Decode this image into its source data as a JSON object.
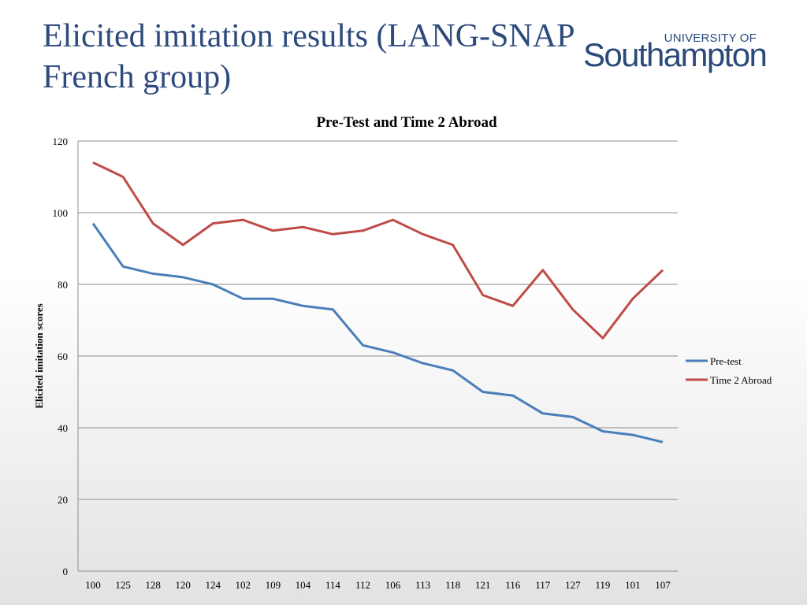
{
  "slide": {
    "title": "Elicited imitation results (LANG-SNAP French group)",
    "logo_top": "UNIVERSITY OF",
    "logo_main": "Southampton"
  },
  "colors": {
    "title": "#2e4a7c",
    "logo": "#2a4a7a",
    "pre_test": "#4a7ebb",
    "time2": "#be4b48",
    "grid": "#8c8c8c"
  },
  "chart_data": {
    "type": "line",
    "title": "Pre-Test and Time 2 Abroad",
    "xlabel": "",
    "ylabel": "Elicited imitation scores",
    "ylim": [
      0,
      120
    ],
    "yticks": [
      0,
      20,
      40,
      60,
      80,
      100,
      120
    ],
    "grid": true,
    "legend": "right",
    "categories": [
      "100",
      "125",
      "128",
      "120",
      "124",
      "102",
      "109",
      "104",
      "114",
      "112",
      "106",
      "113",
      "118",
      "121",
      "116",
      "117",
      "127",
      "119",
      "101",
      "107"
    ],
    "series": [
      {
        "name": "Pre-test",
        "color": "#4a7ebb",
        "values": [
          97,
          85,
          83,
          82,
          80,
          76,
          76,
          74,
          73,
          63,
          61,
          58,
          56,
          50,
          49,
          44,
          43,
          39,
          38,
          36
        ]
      },
      {
        "name": "Time 2 Abroad",
        "color": "#be4b48",
        "values": [
          114,
          110,
          97,
          91,
          97,
          98,
          95,
          96,
          94,
          95,
          98,
          94,
          91,
          77,
          74,
          84,
          73,
          65,
          76,
          84
        ]
      }
    ]
  }
}
